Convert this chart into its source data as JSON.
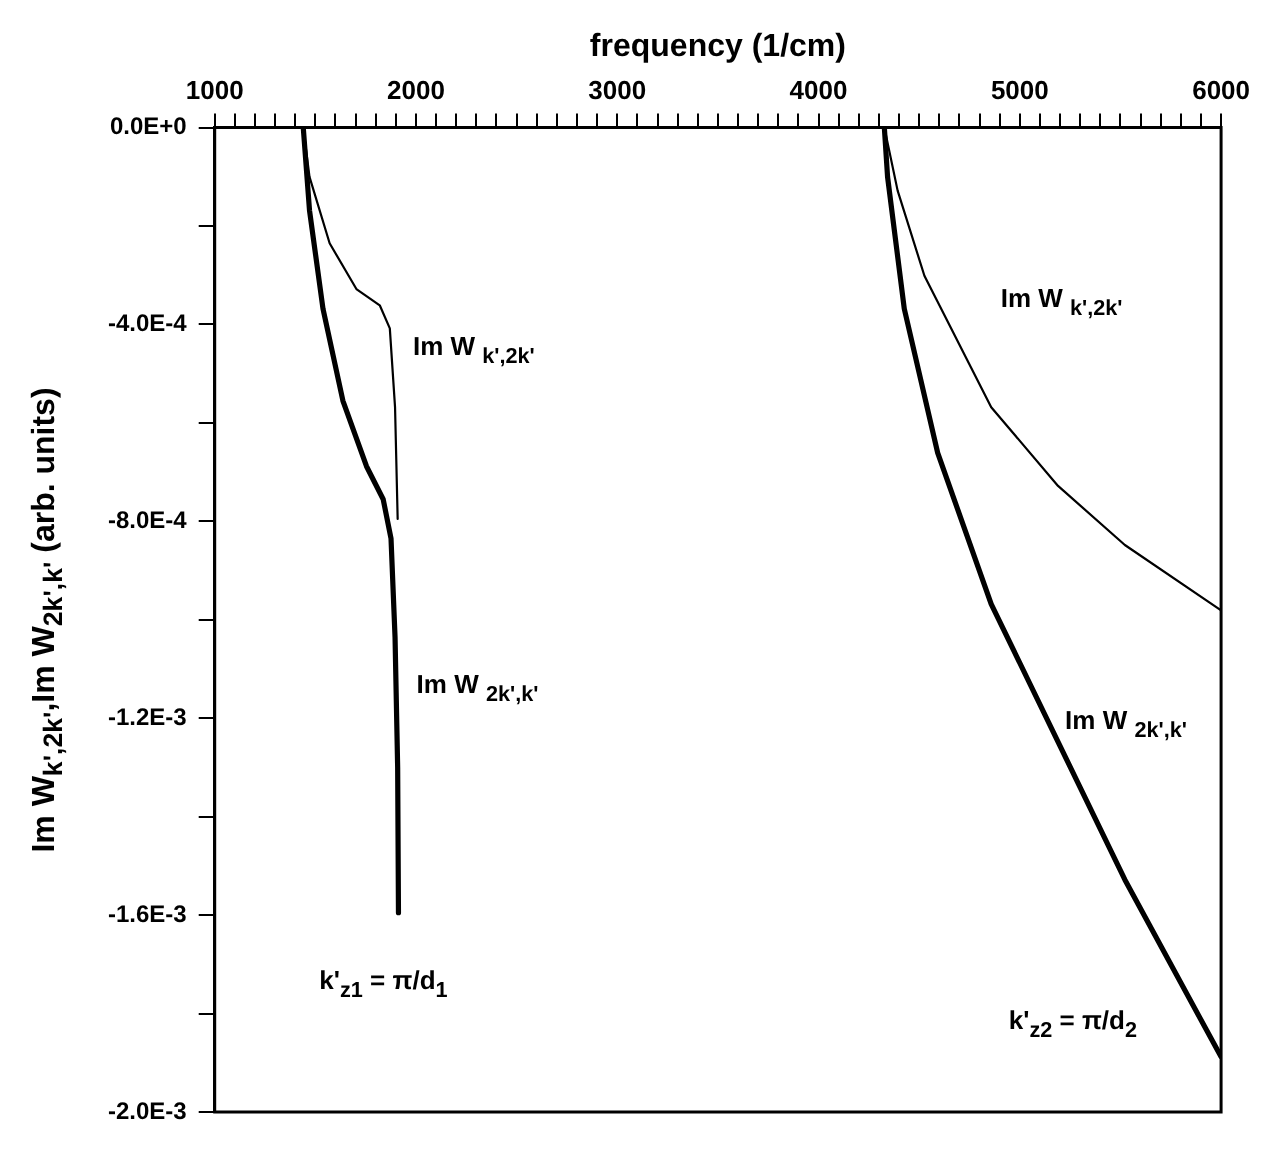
{
  "chart_data": {
    "type": "line",
    "xlabel": "frequency (1/cm)",
    "ylabel": "Im W$_{k',2k'}$,Im W$_{2k',k'}$ (arb. units)",
    "xlim": [
      1000,
      6000
    ],
    "xticks": [
      1000,
      {
        "value": 1100,
        "label": null
      },
      {
        "value": 1200,
        "label": null
      },
      {
        "value": 1300,
        "label": null
      },
      {
        "value": 1400,
        "label": null
      },
      {
        "value": 1500,
        "label": null
      },
      {
        "value": 1600,
        "label": null
      },
      {
        "value": 1700,
        "label": null
      },
      {
        "value": 1800,
        "label": null
      },
      {
        "value": 1900,
        "label": null
      },
      2000,
      {
        "value": 2100,
        "label": null
      },
      {
        "value": 2200,
        "label": null
      },
      {
        "value": 2300,
        "label": null
      },
      {
        "value": 2400,
        "label": null
      },
      {
        "value": 2500,
        "label": null
      },
      {
        "value": 2600,
        "label": null
      },
      {
        "value": 2700,
        "label": null
      },
      {
        "value": 2800,
        "label": null
      },
      {
        "value": 2900,
        "label": null
      },
      3000,
      {
        "value": 3100,
        "label": null
      },
      {
        "value": 3200,
        "label": null
      },
      {
        "value": 3300,
        "label": null
      },
      {
        "value": 3400,
        "label": null
      },
      {
        "value": 3500,
        "label": null
      },
      {
        "value": 3600,
        "label": null
      },
      {
        "value": 3700,
        "label": null
      },
      {
        "value": 3800,
        "label": null
      },
      {
        "value": 3900,
        "label": null
      },
      4000,
      {
        "value": 4100,
        "label": null
      },
      {
        "value": 4200,
        "label": null
      },
      {
        "value": 4300,
        "label": null
      },
      {
        "value": 4400,
        "label": null
      },
      {
        "value": 4500,
        "label": null
      },
      {
        "value": 4600,
        "label": null
      },
      {
        "value": 4700,
        "label": null
      },
      {
        "value": 4800,
        "label": null
      },
      {
        "value": 4900,
        "label": null
      },
      5000,
      {
        "value": 5100,
        "label": null
      },
      {
        "value": 5200,
        "label": null
      },
      {
        "value": 5300,
        "label": null
      },
      {
        "value": 5400,
        "label": null
      },
      {
        "value": 5500,
        "label": null
      },
      {
        "value": 5600,
        "label": null
      },
      {
        "value": 5700,
        "label": null
      },
      {
        "value": 5800,
        "label": null
      },
      {
        "value": 5900,
        "label": null
      },
      6000
    ],
    "ylim": [
      -0.002,
      0
    ],
    "yticks": [
      {
        "value": 0,
        "label": "0.0E+0"
      },
      {
        "value": -0.0002,
        "label": null
      },
      {
        "value": -0.0004,
        "label": "-4.0E-4"
      },
      {
        "value": -0.0006,
        "label": null
      },
      {
        "value": -0.0008,
        "label": "-8.0E-4"
      },
      {
        "value": -0.001,
        "label": null
      },
      {
        "value": -0.0012,
        "label": "-1.2E-3"
      },
      {
        "value": -0.0014,
        "label": null
      },
      {
        "value": -0.0016,
        "label": "-1.6E-3"
      },
      {
        "value": -0.0018,
        "label": null
      },
      {
        "value": -0.002,
        "label": "-2.0E-3"
      }
    ],
    "grid": false,
    "legend": false,
    "marker": "none",
    "line_style": "solid",
    "series": [
      {
        "color": "#000000",
        "x": [
          1440,
          1471,
          1571,
          1704,
          1820,
          1870,
          1896,
          1909
        ],
        "values": [
          0,
          -0.0001,
          -0.000235,
          -0.000328,
          -0.000361,
          -0.000408,
          -0.000568,
          -0.000795
        ]
      },
      {
        "color": "#000000",
        "x": [
          1440,
          1471,
          1538,
          1637,
          1754,
          1837,
          1876,
          1896,
          1909,
          1913
        ],
        "values": [
          0,
          -0.000168,
          -0.000368,
          -0.000555,
          -0.000688,
          -0.000755,
          -0.000835,
          -0.001035,
          -0.0013,
          -0.001595
        ]
      },
      {
        "color": "#000000",
        "x": [
          4327,
          4393,
          4526,
          4858,
          5190,
          5522,
          6000
        ],
        "values": [
          0,
          -0.000128,
          -0.000301,
          -0.000568,
          -0.000728,
          -0.000848,
          -0.000981
        ]
      },
      {
        "color": "#000000",
        "x": [
          4327,
          4343,
          4426,
          4592,
          4858,
          5190,
          5522,
          6000
        ],
        "values": [
          0,
          -0.0001,
          -0.000368,
          -0.000661,
          -0.000968,
          -0.001248,
          -0.001528,
          -0.001888
        ]
      }
    ],
    "annotations": [
      "Im W $_{k',2k'}$",
      "Im W $_{2k',k'}$",
      "k'$_{z1}$ = π/d$_{1}$",
      "Im W $_{k',2k'}$",
      "Im W $_{2k',k'}$",
      "k'$_{z2}$ = π/d$_{2}$"
    ]
  }
}
